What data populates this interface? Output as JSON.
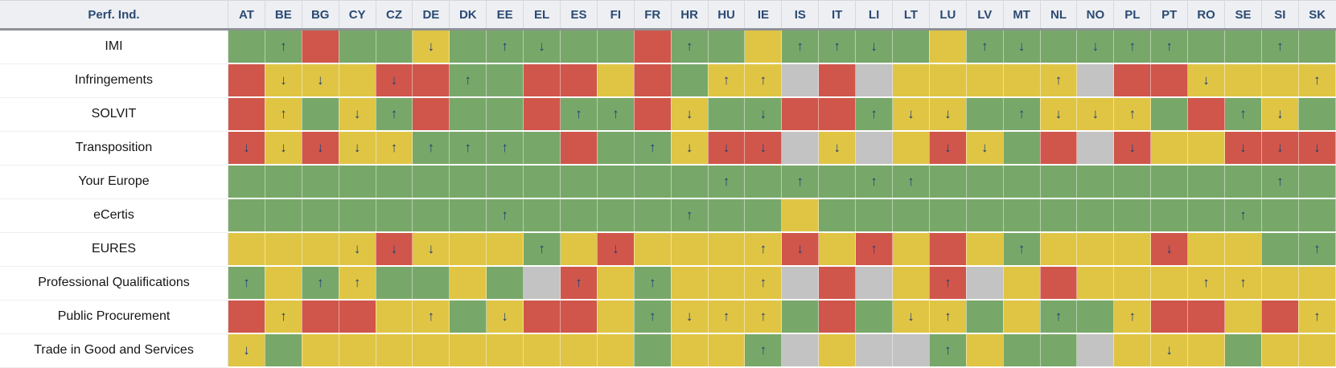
{
  "table": {
    "corner_label": "Perf. Ind."
  },
  "colors": {
    "header_bg": "#edeff2",
    "header_text": "#2b4a74",
    "arrow": "#1d4076",
    "green": "#78a869",
    "yellow": "#e0c544",
    "red": "#d0564b",
    "gray": "#c3c3c3"
  },
  "chart_data": {
    "type": "heatmap",
    "x_labels": [
      "AT",
      "BE",
      "BG",
      "CY",
      "CZ",
      "DE",
      "DK",
      "EE",
      "EL",
      "ES",
      "FI",
      "FR",
      "HR",
      "HU",
      "IE",
      "IS",
      "IT",
      "LI",
      "LT",
      "LU",
      "LV",
      "MT",
      "NL",
      "NO",
      "PL",
      "PT",
      "RO",
      "SE",
      "SI",
      "SK"
    ],
    "y_labels": [
      "IMI",
      "Infringements",
      "SOLVIT",
      "Transposition",
      "Your Europe",
      "eCertis",
      "EURES",
      "Professional Qualifications",
      "Public Procurement",
      "Trade in Good and Services"
    ],
    "cell_encoding": {
      "color_codes": {
        "g": "#78a869",
        "y": "#e0c544",
        "r": "#d0564b",
        "n": "#c3c3c3"
      },
      "arrow_codes": {
        "u": "↑",
        "d": "↓"
      }
    },
    "cells": [
      [
        "g",
        "gu",
        "r",
        "g",
        "g",
        "yd",
        "g",
        "gu",
        "gd",
        "g",
        "g",
        "r",
        "gu",
        "g",
        "y",
        "gu",
        "gu",
        "gd",
        "g",
        "y",
        "gu",
        "gd",
        "g",
        "gd",
        "gu",
        "gu",
        "g",
        "g",
        "gu",
        "g"
      ],
      [
        "r",
        "yd",
        "yd",
        "y",
        "rd",
        "r",
        "gu",
        "g",
        "r",
        "r",
        "y",
        "r",
        "g",
        "yu",
        "yu",
        "n",
        "r",
        "n",
        "y",
        "y",
        "y",
        "y",
        "yu",
        "n",
        "r",
        "r",
        "yd",
        "y",
        "y",
        "yu"
      ],
      [
        "r",
        "yu",
        "g",
        "yd",
        "gu",
        "r",
        "g",
        "g",
        "r",
        "gu",
        "gu",
        "r",
        "yd",
        "g",
        "gd",
        "r",
        "r",
        "gu",
        "yd",
        "yd",
        "g",
        "gu",
        "yd",
        "yd",
        "yu",
        "g",
        "r",
        "gu",
        "yd",
        "g"
      ],
      [
        "rd",
        "yd",
        "rd",
        "yd",
        "yu",
        "gu",
        "gu",
        "gu",
        "g",
        "r",
        "g",
        "gu",
        "yd",
        "rd",
        "rd",
        "n",
        "yd",
        "n",
        "y",
        "rd",
        "yd",
        "g",
        "r",
        "n",
        "rd",
        "y",
        "y",
        "rd",
        "rd",
        "rd"
      ],
      [
        "g",
        "g",
        "g",
        "g",
        "g",
        "g",
        "g",
        "g",
        "g",
        "g",
        "g",
        "g",
        "g",
        "gu",
        "g",
        "gu",
        "g",
        "gu",
        "gu",
        "g",
        "g",
        "g",
        "g",
        "g",
        "g",
        "g",
        "g",
        "g",
        "gu",
        "g"
      ],
      [
        "g",
        "g",
        "g",
        "g",
        "g",
        "g",
        "g",
        "gu",
        "g",
        "g",
        "g",
        "g",
        "gu",
        "g",
        "g",
        "y",
        "g",
        "g",
        "g",
        "g",
        "g",
        "g",
        "g",
        "g",
        "g",
        "g",
        "g",
        "gu",
        "g",
        "g"
      ],
      [
        "y",
        "y",
        "y",
        "yd",
        "rd",
        "yd",
        "y",
        "y",
        "gu",
        "y",
        "rd",
        "y",
        "y",
        "y",
        "yu",
        "rd",
        "y",
        "ru",
        "y",
        "r",
        "y",
        "gu",
        "y",
        "y",
        "y",
        "rd",
        "y",
        "y",
        "g",
        "gu"
      ],
      [
        "gu",
        "y",
        "gu",
        "yu",
        "g",
        "g",
        "y",
        "g",
        "n",
        "ru",
        "y",
        "gu",
        "y",
        "y",
        "yu",
        "n",
        "r",
        "n",
        "y",
        "ru",
        "n",
        "y",
        "r",
        "y",
        "y",
        "y",
        "yu",
        "yu",
        "y",
        "y"
      ],
      [
        "r",
        "yu",
        "r",
        "r",
        "y",
        "yu",
        "g",
        "yd",
        "r",
        "r",
        "y",
        "gu",
        "yd",
        "yu",
        "yu",
        "g",
        "r",
        "g",
        "yd",
        "yu",
        "g",
        "y",
        "gu",
        "g",
        "yu",
        "r",
        "r",
        "y",
        "r",
        "yu"
      ],
      [
        "yd",
        "g",
        "y",
        "y",
        "y",
        "y",
        "y",
        "y",
        "y",
        "y",
        "y",
        "g",
        "y",
        "y",
        "gu",
        "n",
        "y",
        "n",
        "n",
        "gu",
        "y",
        "g",
        "g",
        "n",
        "y",
        "yd",
        "y",
        "g",
        "y",
        "y"
      ]
    ]
  }
}
